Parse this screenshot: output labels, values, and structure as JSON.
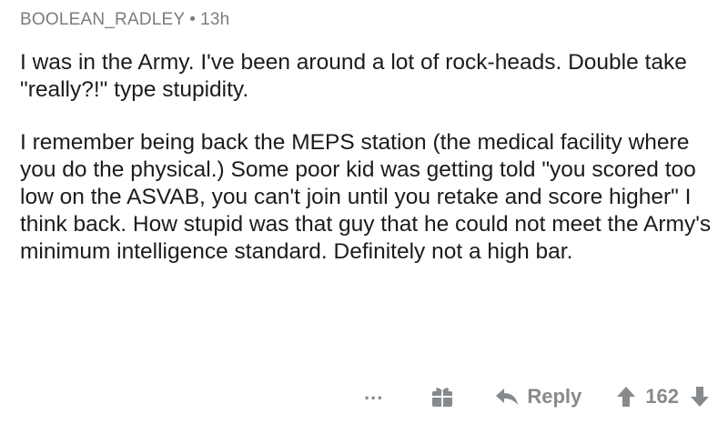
{
  "comment": {
    "author": "BOOLEAN_RADLEY",
    "separator": "•",
    "time": "13h",
    "paragraphs": [
      "I was in the Army. I've been around a lot of rock-heads. Double take \"really?!\" type stupidity.",
      "I remember being back the MEPS station (the medical facility where you do the physical.) Some poor kid was getting told \"you scored too low on the ASVAB, you can't join until you retake and score higher\" I think back. How stupid was that guy that he could not meet the Army's minimum intelligence standard. Definitely not a high bar."
    ]
  },
  "actions": {
    "more_label": "...",
    "reply_label": "Reply",
    "score": "162"
  },
  "icons": {
    "more": "ellipsis-icon",
    "gift": "gift-icon",
    "reply": "reply-arrow-icon",
    "upvote": "upvote-arrow-icon",
    "downvote": "downvote-arrow-icon"
  },
  "colors": {
    "meta_text": "#7c7c7c",
    "body_text": "#1c1c1c",
    "action_gray": "#878a8c"
  }
}
